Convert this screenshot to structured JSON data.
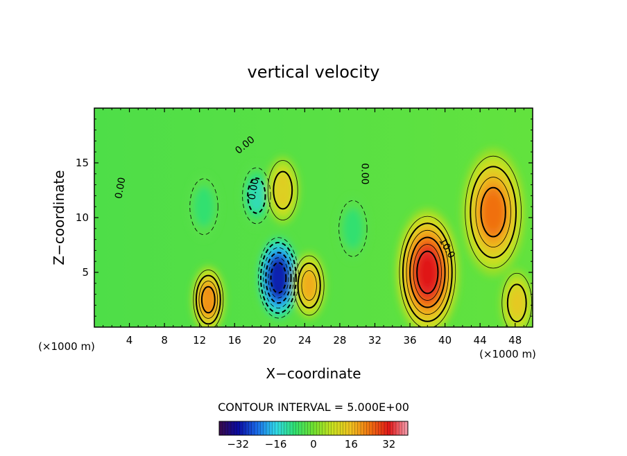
{
  "chart_data": {
    "type": "heatmap",
    "title": "vertical velocity",
    "xlabel": "X−coordinate",
    "ylabel": "Z−coordinate",
    "x_unit": "(×1000 m)",
    "y_unit": "(×1000 m)",
    "xlim": [
      0,
      50
    ],
    "ylim": [
      0,
      20
    ],
    "x_ticks": [
      4,
      8,
      12,
      16,
      20,
      24,
      28,
      32,
      36,
      40,
      44,
      48
    ],
    "y_ticks": [
      5,
      10,
      15
    ],
    "contour_interval_text": "CONTOUR INTERVAL = 5.000E+00",
    "contour_interval": 5,
    "contour_labels": [
      {
        "text": "0.00",
        "x": 3,
        "y": 12.7,
        "rot": -80
      },
      {
        "text": "0.00",
        "x": 17.2,
        "y": 16.6,
        "rot": -40
      },
      {
        "text": "0.00",
        "x": 30.8,
        "y": 14.0,
        "rot": 90
      },
      {
        "text": "0.00",
        "x": 18.2,
        "y": 12.6,
        "rot": -80
      },
      {
        "text": "10.0",
        "x": 40.2,
        "y": 7.2,
        "rot": 60
      }
    ],
    "features": [
      {
        "kind": "min",
        "x": 21,
        "y": 4.5,
        "value": -30
      },
      {
        "kind": "min",
        "x": 18.5,
        "y": 12,
        "value": -12
      },
      {
        "kind": "min",
        "x": 12.5,
        "y": 11,
        "value": -8
      },
      {
        "kind": "min",
        "x": 29.5,
        "y": 9,
        "value": -8
      },
      {
        "kind": "max",
        "x": 38,
        "y": 5,
        "value": 32
      },
      {
        "kind": "max",
        "x": 45.5,
        "y": 10.5,
        "value": 24
      },
      {
        "kind": "max",
        "x": 13,
        "y": 2.5,
        "value": 20
      },
      {
        "kind": "max",
        "x": 24.5,
        "y": 3.8,
        "value": 18
      },
      {
        "kind": "max",
        "x": 48.2,
        "y": 2.2,
        "value": 14
      },
      {
        "kind": "max",
        "x": 21.5,
        "y": 12.5,
        "value": 12
      }
    ],
    "colorbar": {
      "min": -40,
      "max": 40,
      "ticks": [
        {
          "label": "−32",
          "value": -32
        },
        {
          "label": "−16",
          "value": -16
        },
        {
          "label": "0",
          "value": 0
        },
        {
          "label": "16",
          "value": 16
        },
        {
          "label": "32",
          "value": 32
        }
      ],
      "colors": [
        "#3a0a4a",
        "#0a0aa0",
        "#1a6ae8",
        "#30d8e8",
        "#30e070",
        "#70e030",
        "#c8e020",
        "#f0c020",
        "#f07010",
        "#e01818",
        "#f4a0b0"
      ]
    }
  }
}
